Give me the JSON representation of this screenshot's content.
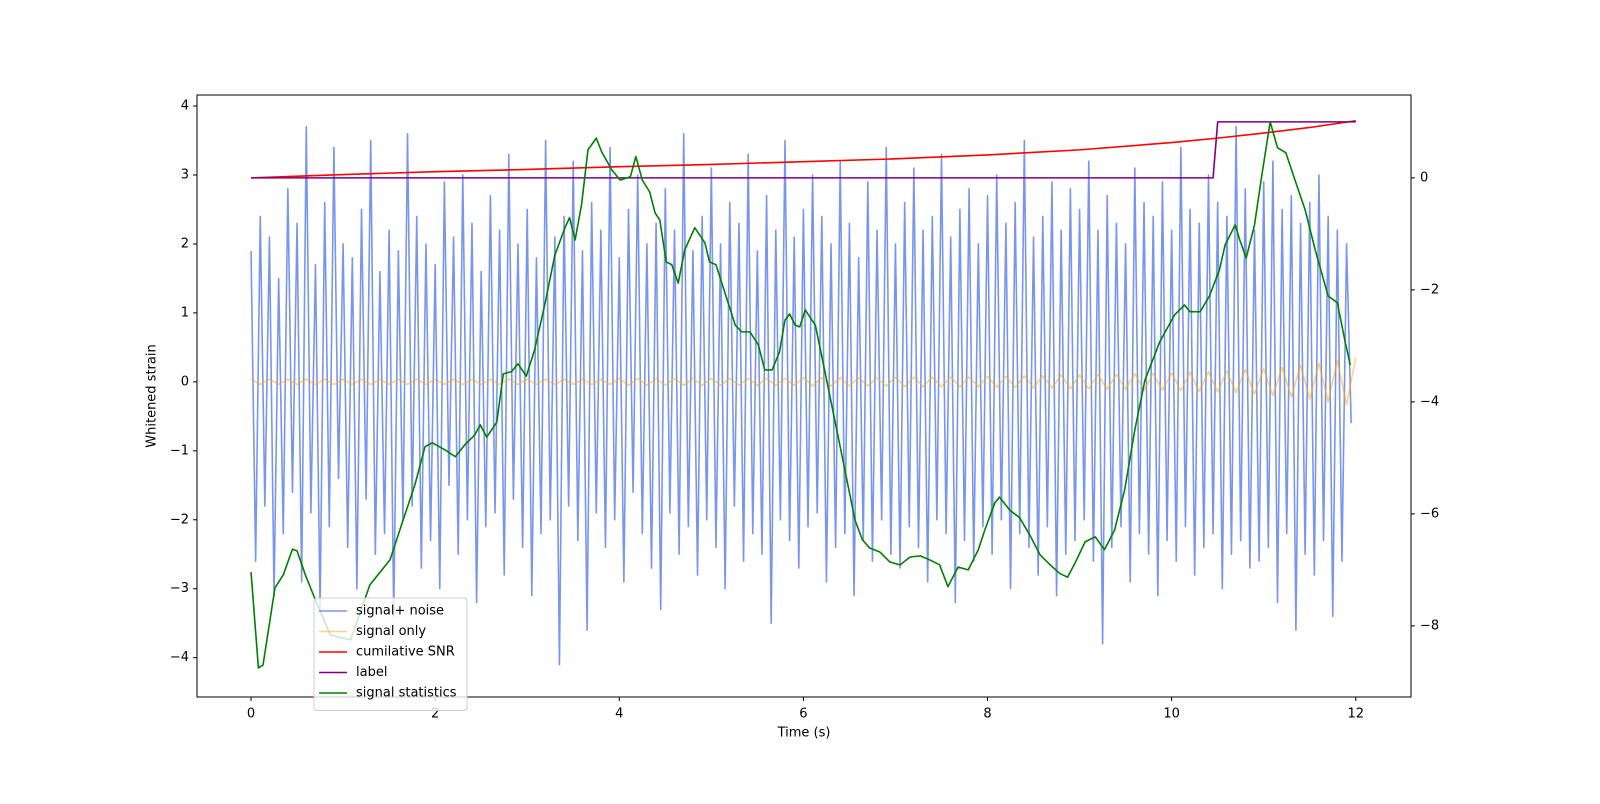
{
  "chart_data": {
    "type": "line",
    "xlabel": "Time (s)",
    "ylabel": "Whitened strain",
    "xlim": [
      -0.587,
      12.6
    ],
    "ylim": [
      -4.57,
      4.16
    ],
    "y2lim": [
      -9.27,
      1.48
    ],
    "xticks": [
      0,
      2,
      4,
      6,
      8,
      10,
      12
    ],
    "yticks": [
      {
        "value": -4,
        "label": "−4"
      },
      {
        "value": -3,
        "label": "−3"
      },
      {
        "value": -2,
        "label": "−2"
      },
      {
        "value": -1,
        "label": "−1"
      },
      0,
      1,
      2,
      3,
      4
    ],
    "y2ticks": [
      {
        "value": -8,
        "label": "−8"
      },
      {
        "value": -6,
        "label": "−6"
      },
      {
        "value": -4,
        "label": "−4"
      },
      {
        "value": -2,
        "label": "−2"
      },
      0
    ],
    "grid": false,
    "legend": "lower left",
    "series": [
      {
        "name": "signal+ noise",
        "color": "#4169e1",
        "alpha": 0.7,
        "x": [
          0,
          0.05,
          0.1,
          0.15,
          0.2,
          0.25,
          0.3,
          0.35,
          0.4,
          0.45,
          0.5,
          0.55,
          0.6,
          0.65,
          0.7,
          0.75,
          0.8,
          0.85,
          0.9,
          0.95,
          1,
          1.05,
          1.1,
          1.15,
          1.2,
          1.25,
          1.3,
          1.35,
          1.4,
          1.45,
          1.5,
          1.55,
          1.6,
          1.65,
          1.7,
          1.75,
          1.8,
          1.85,
          1.9,
          1.95,
          2,
          2.05,
          2.1,
          2.15,
          2.2,
          2.25,
          2.3,
          2.35,
          2.4,
          2.45,
          2.5,
          2.55,
          2.6,
          2.65,
          2.7,
          2.75,
          2.8,
          2.85,
          2.9,
          2.95,
          3,
          3.05,
          3.1,
          3.15,
          3.2,
          3.25,
          3.3,
          3.35,
          3.4,
          3.45,
          3.5,
          3.55,
          3.6,
          3.65,
          3.7,
          3.75,
          3.8,
          3.85,
          3.9,
          3.95,
          4,
          4.05,
          4.1,
          4.15,
          4.2,
          4.25,
          4.3,
          4.35,
          4.4,
          4.45,
          4.5,
          4.55,
          4.6,
          4.65,
          4.7,
          4.75,
          4.8,
          4.85,
          4.9,
          4.95,
          5,
          5.05,
          5.1,
          5.15,
          5.2,
          5.25,
          5.3,
          5.35,
          5.4,
          5.45,
          5.5,
          5.55,
          5.6,
          5.65,
          5.7,
          5.75,
          5.8,
          5.85,
          5.9,
          5.95,
          6,
          6.05,
          6.1,
          6.15,
          6.2,
          6.25,
          6.3,
          6.35,
          6.4,
          6.45,
          6.5,
          6.55,
          6.6,
          6.65,
          6.7,
          6.75,
          6.8,
          6.85,
          6.9,
          6.95,
          7,
          7.05,
          7.1,
          7.15,
          7.2,
          7.25,
          7.3,
          7.35,
          7.4,
          7.45,
          7.5,
          7.55,
          7.6,
          7.65,
          7.7,
          7.75,
          7.8,
          7.85,
          7.9,
          7.95,
          8,
          8.05,
          8.1,
          8.15,
          8.2,
          8.25,
          8.3,
          8.35,
          8.4,
          8.45,
          8.5,
          8.55,
          8.6,
          8.65,
          8.7,
          8.75,
          8.8,
          8.85,
          8.9,
          8.95,
          9,
          9.05,
          9.1,
          9.15,
          9.2,
          9.25,
          9.3,
          9.35,
          9.4,
          9.45,
          9.5,
          9.55,
          9.6,
          9.65,
          9.7,
          9.75,
          9.8,
          9.85,
          9.9,
          9.95,
          10,
          10.05,
          10.1,
          10.15,
          10.2,
          10.25,
          10.3,
          10.35,
          10.4,
          10.45,
          10.5,
          10.55,
          10.6,
          10.65,
          10.7,
          10.75,
          10.8,
          10.85,
          10.9,
          10.95,
          11,
          11.05,
          11.1,
          11.15,
          11.2,
          11.25,
          11.3,
          11.35,
          11.4,
          11.45,
          11.5,
          11.55,
          11.6,
          11.65,
          11.7,
          11.75,
          11.8,
          11.85,
          11.9,
          11.95
        ],
        "values": [
          1.9,
          -2.6,
          2.4,
          -1.8,
          2.1,
          -3.1,
          1.5,
          -2.2,
          2.8,
          -1.6,
          2.3,
          -2.9,
          3.7,
          -1.9,
          1.7,
          -3.3,
          2.6,
          -2.1,
          3.4,
          -1.4,
          2.0,
          -2.4,
          1.8,
          -3.0,
          2.5,
          -1.7,
          3.5,
          -2.5,
          1.6,
          -2.2,
          2.2,
          -3.4,
          1.9,
          -2.0,
          3.6,
          -1.8,
          2.4,
          -2.7,
          2.0,
          -2.3,
          1.7,
          -3.0,
          2.9,
          -1.5,
          2.1,
          -2.5,
          3.0,
          -2.0,
          2.3,
          -3.2,
          1.6,
          -2.1,
          2.7,
          -1.9,
          2.2,
          -2.8,
          3.3,
          -1.7,
          2.0,
          -2.4,
          2.5,
          -3.1,
          1.8,
          -2.2,
          3.5,
          -2.0,
          2.1,
          -4.1,
          2.4,
          -1.8,
          3.2,
          -2.3,
          1.9,
          -3.6,
          2.6,
          -1.9,
          2.2,
          -2.4,
          3.4,
          -2.0,
          1.8,
          -2.9,
          2.5,
          -1.6,
          3.0,
          -2.2,
          2.0,
          -2.7,
          2.3,
          -3.3,
          2.8,
          -1.9,
          2.2,
          -2.5,
          3.6,
          -2.1,
          1.9,
          -2.8,
          2.4,
          -2.0,
          3.1,
          -2.4,
          2.0,
          -3.0,
          2.6,
          -1.8,
          2.3,
          -2.6,
          3.3,
          -2.2,
          1.9,
          -2.5,
          2.7,
          -3.5,
          2.2,
          -2.0,
          3.5,
          -2.3,
          2.1,
          -2.7,
          2.5,
          -2.1,
          3.0,
          -1.9,
          2.4,
          -2.9,
          2.0,
          -2.4,
          3.2,
          -2.2,
          2.3,
          -3.1,
          1.8,
          -2.3,
          2.9,
          -2.6,
          2.2,
          -2.0,
          3.4,
          -2.5,
          2.0,
          -2.7,
          2.6,
          -2.1,
          3.1,
          -2.4,
          2.2,
          -2.9,
          2.4,
          -2.0,
          3.3,
          -2.2,
          2.1,
          -3.2,
          2.5,
          -2.3,
          2.8,
          -2.6,
          2.0,
          -2.1,
          2.7,
          -2.5,
          3.0,
          -2.0,
          2.3,
          -3.0,
          2.6,
          -2.2,
          3.5,
          -2.4,
          2.1,
          -2.8,
          2.4,
          -2.1,
          2.9,
          -3.1,
          2.2,
          -2.5,
          2.8,
          -2.3,
          2.5,
          -2.0,
          3.2,
          -2.6,
          2.2,
          -3.8,
          2.7,
          -2.4,
          2.3,
          -2.1,
          2.0,
          -2.9,
          3.1,
          -2.2,
          2.6,
          -2.5,
          2.4,
          -3.1,
          2.9,
          -2.3,
          2.2,
          -2.6,
          3.4,
          -2.1,
          2.5,
          -2.8,
          2.3,
          -2.4,
          3.0,
          -2.2,
          2.6,
          -3.0,
          2.4,
          -2.5,
          3.7,
          -2.3,
          2.8,
          -2.7,
          2.2,
          -2.6,
          2.9,
          -2.4,
          3.2,
          -3.2,
          2.5,
          -2.2,
          2.7,
          -3.6,
          2.3,
          -2.5,
          2.6,
          -2.8,
          3.0,
          -2.3,
          2.4,
          -3.4,
          2.2,
          -2.6,
          2.0,
          -0.6
        ]
      },
      {
        "name": "signal only",
        "color": "#ffa500",
        "alpha": 0.5,
        "x": [
          0,
          0.1,
          0.2,
          0.3,
          0.4,
          0.5,
          0.6,
          0.7,
          0.8,
          0.9,
          1,
          1.1,
          1.2,
          1.3,
          1.4,
          1.5,
          1.6,
          1.7,
          1.8,
          1.9,
          2,
          2.1,
          2.2,
          2.3,
          2.4,
          2.5,
          2.6,
          2.7,
          2.8,
          2.9,
          3,
          3.1,
          3.2,
          3.3,
          3.4,
          3.5,
          3.6,
          3.7,
          3.8,
          3.9,
          4,
          4.1,
          4.2,
          4.3,
          4.4,
          4.5,
          4.6,
          4.7,
          4.8,
          4.9,
          5,
          5.1,
          5.2,
          5.3,
          5.4,
          5.5,
          5.6,
          5.7,
          5.8,
          5.9,
          6,
          6.1,
          6.2,
          6.3,
          6.4,
          6.5,
          6.6,
          6.7,
          6.8,
          6.9,
          7,
          7.1,
          7.2,
          7.3,
          7.4,
          7.5,
          7.6,
          7.7,
          7.8,
          7.9,
          8,
          8.1,
          8.2,
          8.3,
          8.4,
          8.5,
          8.6,
          8.7,
          8.8,
          8.9,
          9,
          9.1,
          9.2,
          9.3,
          9.4,
          9.5,
          9.6,
          9.7,
          9.8,
          9.9,
          10,
          10.1,
          10.2,
          10.3,
          10.4,
          10.5,
          10.6,
          10.7,
          10.8,
          10.9,
          11,
          11.1,
          11.2,
          11.3,
          11.4,
          11.5,
          11.6,
          11.7,
          11.8,
          11.9,
          12
        ],
        "values": [
          0.04,
          -0.04,
          0.04,
          -0.04,
          0.04,
          -0.04,
          0.04,
          -0.04,
          0.04,
          -0.04,
          0.04,
          -0.04,
          0.04,
          -0.04,
          0.04,
          -0.04,
          0.04,
          -0.04,
          0.04,
          -0.04,
          0.04,
          -0.04,
          0.04,
          -0.04,
          0.04,
          -0.04,
          0.04,
          -0.04,
          0.04,
          -0.04,
          0.04,
          -0.04,
          0.04,
          -0.04,
          0.04,
          -0.04,
          0.04,
          -0.04,
          0.04,
          -0.04,
          0.05,
          -0.05,
          0.05,
          -0.05,
          0.05,
          -0.05,
          0.05,
          -0.05,
          0.05,
          -0.05,
          0.05,
          -0.05,
          0.05,
          -0.05,
          0.05,
          -0.05,
          0.05,
          -0.05,
          0.05,
          -0.05,
          0.06,
          -0.06,
          0.06,
          -0.06,
          0.06,
          -0.06,
          0.06,
          -0.06,
          0.06,
          -0.06,
          0.07,
          -0.07,
          0.07,
          -0.07,
          0.07,
          -0.07,
          0.07,
          -0.07,
          0.07,
          -0.07,
          0.08,
          -0.08,
          0.08,
          -0.08,
          0.09,
          -0.09,
          0.09,
          -0.09,
          0.1,
          -0.1,
          0.1,
          -0.1,
          0.11,
          -0.11,
          0.11,
          -0.11,
          0.12,
          -0.12,
          0.12,
          -0.12,
          0.13,
          -0.13,
          0.14,
          -0.14,
          0.15,
          -0.15,
          0.16,
          -0.16,
          0.18,
          -0.18,
          0.19,
          -0.2,
          0.21,
          -0.22,
          0.24,
          -0.25,
          0.27,
          -0.29,
          0.31,
          -0.33,
          0.35
        ]
      },
      {
        "name": "cumilative SNR",
        "color": "red",
        "axis": "y2",
        "x": [
          0,
          1,
          2,
          3,
          4,
          5,
          6,
          7,
          8,
          9,
          10,
          10.5,
          11,
          11.5,
          12
        ],
        "values": [
          0,
          0.06,
          0.11,
          0.15,
          0.2,
          0.24,
          0.29,
          0.34,
          0.41,
          0.5,
          0.63,
          0.71,
          0.8,
          0.9,
          1.02
        ]
      },
      {
        "name": "label",
        "color": "purple",
        "axis": "y2",
        "x": [
          0,
          10.45,
          10.5,
          12
        ],
        "values": [
          0,
          0,
          1,
          1
        ]
      },
      {
        "name": "signal statistics",
        "color": "green",
        "axis": "y2",
        "x": [
          0,
          0.08,
          0.13,
          0.26,
          0.35,
          0.45,
          0.5,
          0.59,
          0.7,
          0.86,
          1.08,
          1.29,
          1.51,
          1.67,
          1.78,
          1.89,
          1.97,
          2.11,
          2.22,
          2.32,
          2.43,
          2.49,
          2.56,
          2.67,
          2.74,
          2.83,
          2.9,
          2.99,
          3.08,
          3.19,
          3.3,
          3.41,
          3.46,
          3.52,
          3.59,
          3.66,
          3.75,
          3.81,
          3.92,
          4.01,
          4.12,
          4.18,
          4.25,
          4.33,
          4.39,
          4.44,
          4.51,
          4.57,
          4.64,
          4.71,
          4.82,
          4.93,
          4.98,
          5.05,
          5.12,
          5.26,
          5.33,
          5.42,
          5.51,
          5.58,
          5.66,
          5.74,
          5.8,
          5.85,
          5.91,
          5.96,
          6.02,
          6.13,
          6.23,
          6.34,
          6.45,
          6.56,
          6.64,
          6.72,
          6.83,
          6.94,
          7.05,
          7.16,
          7.27,
          7.37,
          7.48,
          7.57,
          7.68,
          7.79,
          7.9,
          7.97,
          8.08,
          8.13,
          8.24,
          8.35,
          8.46,
          8.57,
          8.68,
          8.79,
          8.87,
          8.95,
          9.06,
          9.17,
          9.27,
          9.38,
          9.49,
          9.6,
          9.71,
          9.87,
          10.03,
          10.14,
          10.2,
          10.31,
          10.41,
          10.52,
          10.58,
          10.69,
          10.74,
          10.81,
          10.9,
          10.98,
          11.07,
          11.15,
          11.24,
          11.34,
          11.45,
          11.56,
          11.7,
          11.8,
          11.88,
          11.94
        ],
        "values": [
          -7.04,
          -8.75,
          -8.7,
          -7.32,
          -7.09,
          -6.63,
          -6.66,
          -7.09,
          -7.54,
          -8.16,
          -8.25,
          -7.27,
          -6.82,
          -6.02,
          -5.48,
          -4.8,
          -4.73,
          -4.86,
          -4.98,
          -4.77,
          -4.59,
          -4.41,
          -4.63,
          -4.36,
          -3.5,
          -3.46,
          -3.32,
          -3.54,
          -3.07,
          -2.27,
          -1.38,
          -0.89,
          -0.71,
          -1.11,
          -0.48,
          0.5,
          0.71,
          0.46,
          0.14,
          -0.04,
          0.02,
          0.38,
          -0.04,
          -0.25,
          -0.63,
          -0.75,
          -1.5,
          -1.55,
          -1.88,
          -1.29,
          -0.89,
          -1.16,
          -1.5,
          -1.55,
          -1.91,
          -2.63,
          -2.75,
          -2.75,
          -2.98,
          -3.43,
          -3.43,
          -3.11,
          -2.54,
          -2.43,
          -2.63,
          -2.66,
          -2.36,
          -2.63,
          -3.43,
          -4.32,
          -5.21,
          -6.11,
          -6.46,
          -6.61,
          -6.68,
          -6.86,
          -6.91,
          -6.77,
          -6.75,
          -6.82,
          -6.91,
          -7.3,
          -6.95,
          -7.0,
          -6.64,
          -6.29,
          -5.8,
          -5.7,
          -5.93,
          -6.07,
          -6.38,
          -6.73,
          -6.91,
          -7.07,
          -7.13,
          -6.88,
          -6.5,
          -6.41,
          -6.64,
          -6.29,
          -5.57,
          -4.5,
          -3.61,
          -2.93,
          -2.45,
          -2.27,
          -2.39,
          -2.39,
          -2.11,
          -1.64,
          -1.2,
          -0.84,
          -1.11,
          -1.43,
          -0.84,
          0.05,
          1.0,
          0.54,
          0.45,
          -0.04,
          -0.57,
          -1.29,
          -2.11,
          -2.23,
          -2.89,
          -3.34
        ]
      }
    ]
  }
}
